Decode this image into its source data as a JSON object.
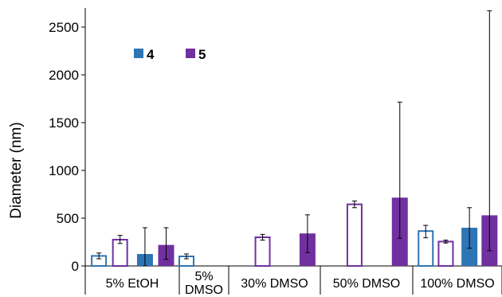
{
  "chart_data": {
    "type": "bar",
    "title": "",
    "ylabel": "Diameter (nm)",
    "xlabel": "",
    "ylim": [
      0,
      2700
    ],
    "yticks": [
      0,
      500,
      1000,
      1500,
      2000,
      2500
    ],
    "grid": false,
    "legend_position": "top-left",
    "legend": [
      {
        "label": "4",
        "color": "#2e75b6"
      },
      {
        "label": "5",
        "color": "#7030a0"
      }
    ],
    "categories": [
      "5% EtOH",
      "5% DMSO",
      "30% DMSO",
      "50% DMSO",
      "100% DMSO"
    ],
    "category_labels": [
      [
        "5% EtOH"
      ],
      [
        "5%",
        "DMSO"
      ],
      [
        "30% DMSO"
      ],
      [
        "50% DMSO"
      ],
      [
        "100% DMSO"
      ]
    ],
    "bar_order": [
      {
        "compound": "4",
        "fill": "outline"
      },
      {
        "compound": "5",
        "fill": "outline"
      },
      {
        "compound": "4",
        "fill": "solid"
      },
      {
        "compound": "5",
        "fill": "solid"
      }
    ],
    "series": [
      {
        "compound": "4",
        "fill": "outline",
        "color": "#2e75b6",
        "values": [
          105,
          100,
          null,
          null,
          365
        ],
        "err_low": [
          75,
          75,
          null,
          null,
          295
        ],
        "err_high": [
          135,
          125,
          null,
          null,
          425
        ]
      },
      {
        "compound": "5",
        "fill": "outline",
        "color": "#7030a0",
        "values": [
          275,
          null,
          300,
          645,
          255
        ],
        "err_low": [
          235,
          null,
          270,
          610,
          240
        ],
        "err_high": [
          320,
          null,
          330,
          680,
          270
        ]
      },
      {
        "compound": "4",
        "fill": "solid",
        "color": "#2e75b6",
        "values": [
          125,
          null,
          null,
          null,
          400
        ],
        "err_low": [
          0,
          null,
          null,
          null,
          185
        ],
        "err_high": [
          400,
          null,
          null,
          null,
          610
        ]
      },
      {
        "compound": "5",
        "fill": "solid",
        "color": "#7030a0",
        "values": [
          220,
          null,
          340,
          715,
          530
        ],
        "err_low": [
          70,
          null,
          140,
          290,
          160
        ],
        "err_high": [
          400,
          null,
          535,
          1715,
          2670
        ]
      }
    ]
  }
}
